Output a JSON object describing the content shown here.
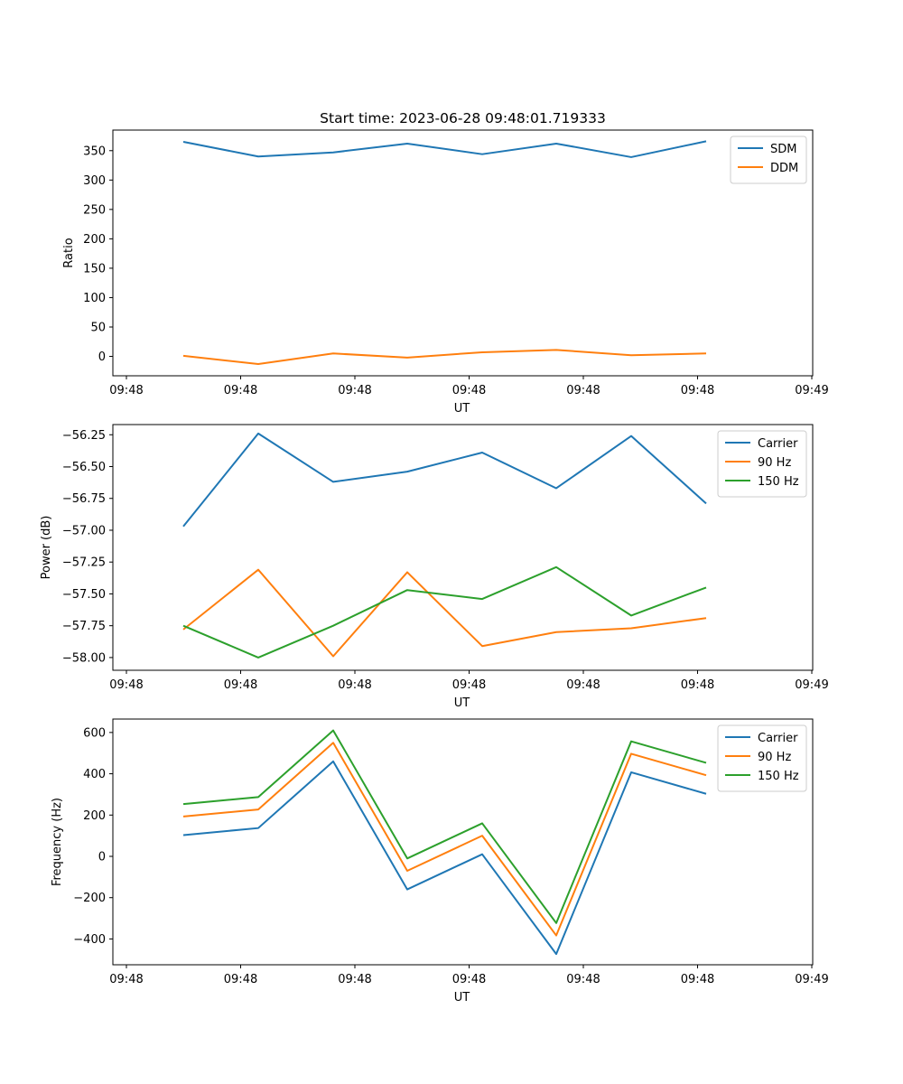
{
  "chart_data": [
    {
      "type": "line",
      "title": "Start time: 2023-06-28 09:48:01.719333",
      "xlabel": "UT",
      "ylabel": "Ratio",
      "x_ticks": [
        "09:48",
        "09:48",
        "09:48",
        "09:48",
        "09:48",
        "09:48",
        "09:49"
      ],
      "y_ticks": [
        0,
        50,
        100,
        150,
        200,
        250,
        300,
        350
      ],
      "ylim": [
        -33,
        385
      ],
      "legend_position": "top-right",
      "series": [
        {
          "name": "SDM",
          "color": "#1f77b4",
          "values": [
            365,
            340,
            347,
            362,
            344,
            362,
            339,
            366
          ]
        },
        {
          "name": "DDM",
          "color": "#ff7f0e",
          "values": [
            1,
            -13,
            5,
            -2,
            7,
            11,
            2,
            5
          ]
        }
      ]
    },
    {
      "type": "line",
      "title": "",
      "xlabel": "UT",
      "ylabel": "Power (dB)",
      "x_ticks": [
        "09:48",
        "09:48",
        "09:48",
        "09:48",
        "09:48",
        "09:48",
        "09:49"
      ],
      "y_ticks": [
        "−58.00",
        "−57.75",
        "−57.50",
        "−57.25",
        "−57.00",
        "−56.75",
        "−56.50",
        "−56.25"
      ],
      "ylim": [
        -58.1,
        -56.17
      ],
      "legend_position": "top-right",
      "series": [
        {
          "name": "Carrier",
          "color": "#1f77b4",
          "values": [
            -56.97,
            -56.24,
            -56.62,
            -56.54,
            -56.39,
            -56.67,
            -56.26,
            -56.79
          ]
        },
        {
          "name": "90 Hz",
          "color": "#ff7f0e",
          "values": [
            -57.78,
            -57.31,
            -57.99,
            -57.33,
            -57.91,
            -57.8,
            -57.77,
            -57.69
          ]
        },
        {
          "name": "150 Hz",
          "color": "#2ca02c",
          "values": [
            -57.75,
            -58.0,
            -57.75,
            -57.47,
            -57.54,
            -57.29,
            -57.67,
            -57.45
          ]
        }
      ]
    },
    {
      "type": "line",
      "title": "",
      "xlabel": "UT",
      "ylabel": "Frequency (Hz)",
      "x_ticks": [
        "09:48",
        "09:48",
        "09:48",
        "09:48",
        "09:48",
        "09:48",
        "09:49"
      ],
      "y_ticks": [
        "−400",
        "−200",
        "0",
        "200",
        "400",
        "600"
      ],
      "ylim": [
        -525,
        665
      ],
      "legend_position": "top-right",
      "series": [
        {
          "name": "Carrier",
          "color": "#1f77b4",
          "values": [
            103,
            137,
            460,
            -160,
            10,
            -473,
            407,
            303
          ]
        },
        {
          "name": "90 Hz",
          "color": "#ff7f0e",
          "values": [
            193,
            227,
            550,
            -70,
            100,
            -383,
            497,
            393
          ]
        },
        {
          "name": "150 Hz",
          "color": "#2ca02c",
          "values": [
            253,
            287,
            610,
            -10,
            160,
            -323,
            557,
            453
          ]
        }
      ]
    }
  ]
}
